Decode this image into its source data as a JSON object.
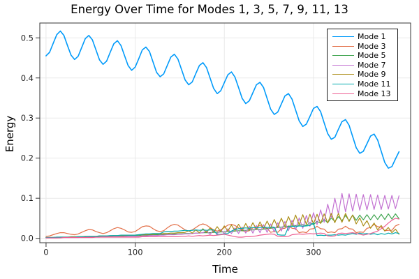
{
  "title": "Energy Over Time for Modes 1, 3, 5, 7, 9, 11, 13",
  "chart_data": {
    "type": "line",
    "title": "Energy Over Time for Modes 1, 3, 5, 7, 9, 11, 13",
    "xlabel": "Time",
    "ylabel": "Energy",
    "xlim": [
      -7,
      409
    ],
    "ylim": [
      -0.011,
      0.537
    ],
    "xticks": [
      0,
      100,
      200,
      300
    ],
    "yticks": [
      0.0,
      0.1,
      0.2,
      0.3,
      0.4,
      0.5
    ],
    "grid": true,
    "legend_position": "top-right",
    "frame_color": "#363636",
    "grid_color": "#e9e9e9",
    "tick_label_color": "#1f1f1f",
    "x": [
      0,
      4,
      8,
      12,
      16,
      20,
      24,
      28,
      32,
      36,
      40,
      44,
      48,
      52,
      56,
      60,
      64,
      68,
      72,
      76,
      80,
      84,
      88,
      92,
      96,
      100,
      104,
      108,
      112,
      116,
      120,
      124,
      128,
      132,
      136,
      140,
      144,
      148,
      152,
      156,
      160,
      164,
      168,
      172,
      176,
      180,
      184,
      188,
      192,
      196,
      200,
      204,
      208,
      212,
      216,
      220,
      224,
      228,
      232,
      236,
      240,
      244,
      248,
      252,
      256,
      260,
      264,
      268,
      272,
      276,
      280,
      284,
      288,
      292,
      296,
      300,
      304,
      308,
      312,
      316,
      320,
      324,
      328,
      332,
      336,
      340,
      344,
      348,
      352,
      356,
      360,
      364,
      368,
      372,
      376,
      380,
      384,
      388,
      392,
      396
    ],
    "series": [
      {
        "name": "Mode 1",
        "color": "#009AFA",
        "width": 1.6,
        "values": [
          0.455,
          0.464,
          0.486,
          0.508,
          0.517,
          0.506,
          0.481,
          0.457,
          0.446,
          0.454,
          0.476,
          0.498,
          0.506,
          0.495,
          0.47,
          0.445,
          0.434,
          0.442,
          0.464,
          0.485,
          0.493,
          0.481,
          0.456,
          0.431,
          0.419,
          0.427,
          0.448,
          0.47,
          0.477,
          0.466,
          0.44,
          0.414,
          0.403,
          0.41,
          0.431,
          0.452,
          0.459,
          0.447,
          0.421,
          0.395,
          0.383,
          0.39,
          0.411,
          0.431,
          0.438,
          0.426,
          0.4,
          0.374,
          0.361,
          0.368,
          0.388,
          0.408,
          0.415,
          0.402,
          0.376,
          0.349,
          0.336,
          0.343,
          0.363,
          0.383,
          0.389,
          0.376,
          0.349,
          0.322,
          0.309,
          0.315,
          0.335,
          0.355,
          0.361,
          0.347,
          0.32,
          0.293,
          0.279,
          0.285,
          0.304,
          0.324,
          0.329,
          0.316,
          0.288,
          0.261,
          0.247,
          0.252,
          0.272,
          0.291,
          0.296,
          0.282,
          0.254,
          0.226,
          0.212,
          0.217,
          0.236,
          0.255,
          0.26,
          0.245,
          0.217,
          0.189,
          0.175,
          0.179,
          0.198,
          0.216
        ]
      },
      {
        "name": "Mode 3",
        "color": "#E36F47",
        "width": 1.2,
        "values": [
          0.005,
          0.006,
          0.009,
          0.012,
          0.014,
          0.014,
          0.012,
          0.01,
          0.009,
          0.011,
          0.015,
          0.019,
          0.022,
          0.021,
          0.017,
          0.014,
          0.012,
          0.014,
          0.019,
          0.024,
          0.027,
          0.025,
          0.021,
          0.016,
          0.015,
          0.017,
          0.023,
          0.029,
          0.031,
          0.03,
          0.024,
          0.019,
          0.017,
          0.019,
          0.026,
          0.032,
          0.035,
          0.033,
          0.027,
          0.021,
          0.018,
          0.021,
          0.027,
          0.033,
          0.036,
          0.033,
          0.027,
          0.021,
          0.018,
          0.021,
          0.027,
          0.033,
          0.035,
          0.032,
          0.026,
          0.019,
          0.017,
          0.019,
          0.026,
          0.027,
          0.033,
          0.026,
          0.025,
          0.015,
          0.017,
          0.015,
          0.024,
          0.025,
          0.031,
          0.025,
          0.024,
          0.014,
          0.016,
          0.014,
          0.023,
          0.024,
          0.03,
          0.024,
          0.023,
          0.014,
          0.016,
          0.014,
          0.023,
          0.024,
          0.03,
          0.024,
          0.023,
          0.014,
          0.016,
          0.015,
          0.025,
          0.027,
          0.035,
          0.029,
          0.028,
          0.019,
          0.02,
          0.02,
          0.031,
          0.035
        ]
      },
      {
        "name": "Mode 5",
        "color": "#3EA44E",
        "width": 1.2,
        "values": [
          0.002,
          0.002,
          0.002,
          0.002,
          0.003,
          0.003,
          0.003,
          0.003,
          0.003,
          0.003,
          0.004,
          0.004,
          0.004,
          0.004,
          0.004,
          0.005,
          0.005,
          0.005,
          0.005,
          0.006,
          0.006,
          0.006,
          0.006,
          0.007,
          0.007,
          0.007,
          0.007,
          0.008,
          0.008,
          0.008,
          0.009,
          0.009,
          0.009,
          0.01,
          0.01,
          0.01,
          0.011,
          0.011,
          0.011,
          0.012,
          0.012,
          0.012,
          0.013,
          0.013,
          0.014,
          0.014,
          0.014,
          0.015,
          0.015,
          0.016,
          0.016,
          0.017,
          0.017,
          0.018,
          0.019,
          0.019,
          0.02,
          0.021,
          0.021,
          0.022,
          0.022,
          0.023,
          0.024,
          0.025,
          0.026,
          0.027,
          0.028,
          0.029,
          0.03,
          0.031,
          0.032,
          0.033,
          0.034,
          0.032,
          0.039,
          0.034,
          0.042,
          0.038,
          0.047,
          0.039,
          0.051,
          0.042,
          0.054,
          0.044,
          0.057,
          0.044,
          0.058,
          0.045,
          0.058,
          0.046,
          0.059,
          0.046,
          0.059,
          0.047,
          0.06,
          0.047,
          0.061,
          0.048,
          0.061,
          0.049
        ]
      },
      {
        "name": "Mode 7",
        "color": "#C371D2",
        "width": 1.2,
        "values": [
          0.001,
          0.001,
          0.001,
          0.001,
          0.002,
          0.002,
          0.002,
          0.002,
          0.002,
          0.002,
          0.003,
          0.003,
          0.003,
          0.003,
          0.003,
          0.003,
          0.004,
          0.004,
          0.004,
          0.004,
          0.004,
          0.004,
          0.005,
          0.005,
          0.005,
          0.005,
          0.005,
          0.006,
          0.006,
          0.007,
          0.007,
          0.007,
          0.008,
          0.008,
          0.009,
          0.009,
          0.009,
          0.01,
          0.01,
          0.011,
          0.011,
          0.012,
          0.013,
          0.013,
          0.014,
          0.018,
          0.01,
          0.02,
          0.011,
          0.022,
          0.011,
          0.024,
          0.012,
          0.026,
          0.012,
          0.028,
          0.013,
          0.03,
          0.013,
          0.032,
          0.014,
          0.034,
          0.015,
          0.036,
          0.016,
          0.039,
          0.018,
          0.042,
          0.019,
          0.045,
          0.021,
          0.051,
          0.025,
          0.057,
          0.03,
          0.064,
          0.034,
          0.071,
          0.04,
          0.085,
          0.051,
          0.1,
          0.061,
          0.112,
          0.066,
          0.111,
          0.068,
          0.11,
          0.07,
          0.109,
          0.071,
          0.109,
          0.072,
          0.108,
          0.072,
          0.107,
          0.073,
          0.107,
          0.074,
          0.106
        ]
      },
      {
        "name": "Mode 9",
        "color": "#AC8E18",
        "width": 1.2,
        "values": [
          0.002,
          0.002,
          0.002,
          0.003,
          0.003,
          0.003,
          0.003,
          0.004,
          0.004,
          0.004,
          0.004,
          0.005,
          0.005,
          0.005,
          0.005,
          0.006,
          0.006,
          0.006,
          0.006,
          0.007,
          0.007,
          0.007,
          0.007,
          0.008,
          0.008,
          0.008,
          0.009,
          0.009,
          0.009,
          0.01,
          0.01,
          0.011,
          0.011,
          0.012,
          0.012,
          0.013,
          0.013,
          0.014,
          0.014,
          0.015,
          0.019,
          0.013,
          0.021,
          0.014,
          0.024,
          0.015,
          0.026,
          0.016,
          0.029,
          0.017,
          0.031,
          0.018,
          0.033,
          0.019,
          0.035,
          0.02,
          0.037,
          0.021,
          0.039,
          0.022,
          0.041,
          0.024,
          0.043,
          0.025,
          0.047,
          0.028,
          0.05,
          0.03,
          0.054,
          0.033,
          0.058,
          0.034,
          0.059,
          0.035,
          0.06,
          0.036,
          0.06,
          0.037,
          0.061,
          0.038,
          0.062,
          0.039,
          0.062,
          0.04,
          0.062,
          0.042,
          0.058,
          0.036,
          0.051,
          0.031,
          0.044,
          0.025,
          0.038,
          0.021,
          0.032,
          0.018,
          0.027,
          0.014,
          0.023,
          0.01
        ]
      },
      {
        "name": "Mode 11",
        "color": "#00AAAE",
        "width": 1.2,
        "values": [
          0.002,
          0.002,
          0.002,
          0.003,
          0.003,
          0.003,
          0.003,
          0.003,
          0.003,
          0.004,
          0.004,
          0.004,
          0.005,
          0.005,
          0.005,
          0.006,
          0.006,
          0.006,
          0.007,
          0.007,
          0.007,
          0.008,
          0.008,
          0.008,
          0.008,
          0.008,
          0.009,
          0.01,
          0.011,
          0.011,
          0.012,
          0.012,
          0.012,
          0.016,
          0.017,
          0.017,
          0.018,
          0.018,
          0.019,
          0.02,
          0.019,
          0.02,
          0.021,
          0.02,
          0.021,
          0.02,
          0.021,
          0.021,
          0.009,
          0.01,
          0.011,
          0.012,
          0.018,
          0.022,
          0.024,
          0.025,
          0.026,
          0.025,
          0.027,
          0.026,
          0.027,
          0.028,
          0.027,
          0.028,
          0.028,
          0.009,
          0.008,
          0.008,
          0.028,
          0.03,
          0.029,
          0.031,
          0.03,
          0.031,
          0.032,
          0.038,
          0.007,
          0.008,
          0.007,
          0.008,
          0.008,
          0.009,
          0.008,
          0.009,
          0.008,
          0.01,
          0.012,
          0.01,
          0.013,
          0.011,
          0.012,
          0.01,
          0.012,
          0.009,
          0.012,
          0.01,
          0.013,
          0.011,
          0.014,
          0.012
        ]
      },
      {
        "name": "Mode 13",
        "color": "#ED5E92",
        "width": 1.2,
        "values": [
          0.001,
          0.001,
          0.001,
          0.001,
          0.001,
          0.002,
          0.002,
          0.002,
          0.002,
          0.002,
          0.002,
          0.002,
          0.002,
          0.002,
          0.003,
          0.003,
          0.003,
          0.003,
          0.003,
          0.003,
          0.003,
          0.003,
          0.003,
          0.003,
          0.003,
          0.003,
          0.003,
          0.004,
          0.004,
          0.004,
          0.004,
          0.004,
          0.004,
          0.004,
          0.004,
          0.004,
          0.004,
          0.004,
          0.005,
          0.005,
          0.006,
          0.005,
          0.006,
          0.007,
          0.006,
          0.007,
          0.008,
          0.007,
          0.008,
          0.009,
          0.01,
          0.008,
          0.006,
          0.004,
          0.003,
          0.003,
          0.004,
          0.004,
          0.005,
          0.006,
          0.008,
          0.009,
          0.01,
          0.011,
          0.01,
          0.005,
          0.004,
          0.004,
          0.005,
          0.009,
          0.01,
          0.011,
          0.01,
          0.011,
          0.012,
          0.011,
          0.012,
          0.013,
          0.012,
          0.006,
          0.005,
          0.006,
          0.012,
          0.013,
          0.012,
          0.013,
          0.014,
          0.012,
          0.01,
          0.008,
          0.01,
          0.012,
          0.015,
          0.018,
          0.024,
          0.03,
          0.038,
          0.045,
          0.05,
          0.048
        ]
      }
    ]
  }
}
